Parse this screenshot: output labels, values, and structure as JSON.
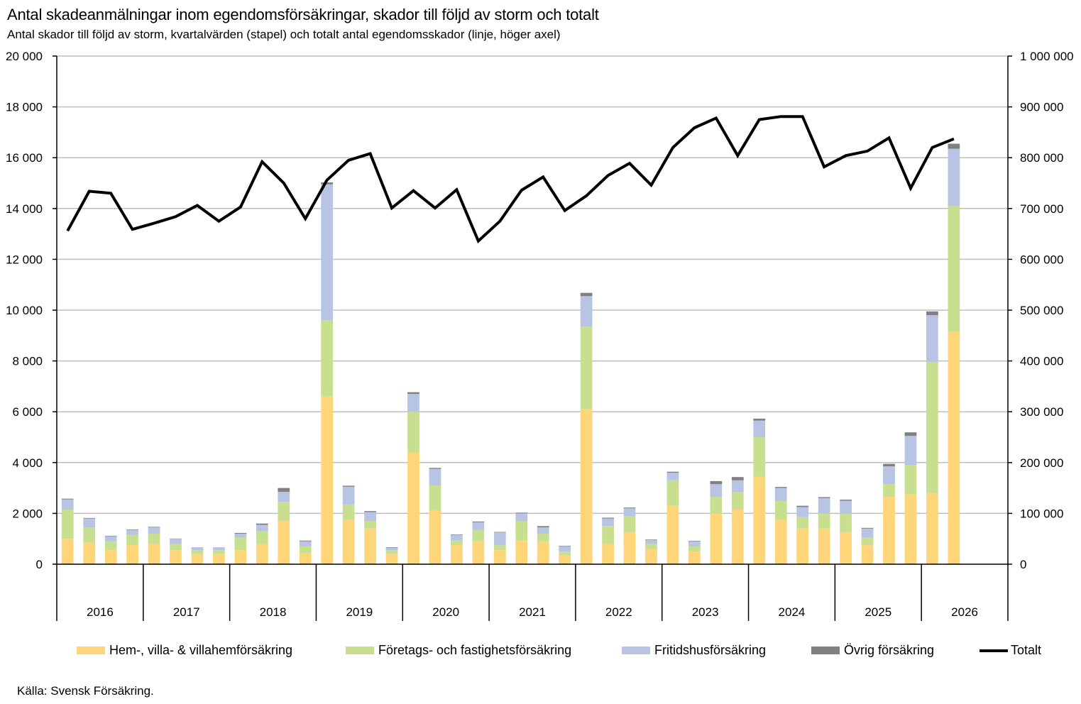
{
  "title": "Antal skadeanmälningar inom egendomsförsäkringar, skador till följd av storm och totalt",
  "subtitle": "Antal skador till följd av storm, kvartalvärden (stapel) och totalt antal egendomsskador (linje, höger axel)",
  "source": "Källa: Svensk Försäkring.",
  "colors": {
    "hem": "#FFD57A",
    "foretag": "#C8DF8F",
    "fritid": "#B7C4E3",
    "ovrig": "#808080",
    "totalt": "#000000",
    "grid": "#BFBFBF"
  },
  "legend": {
    "hem": "Hem-, villa- & villahemförsäkring",
    "foretag": "Företags- och fastighetsförsäkring",
    "fritid": "Fritidshusförsäkring",
    "ovrig": "Övrig försäkring",
    "totalt": "Totalt"
  },
  "chart_data": {
    "type": "bar",
    "stacked": true,
    "years": [
      "2016",
      "2017",
      "2018",
      "2019",
      "2020",
      "2021",
      "2022",
      "2023",
      "2024",
      "2025",
      "2026"
    ],
    "quarters_per_year": 4,
    "left_axis": {
      "min": 0,
      "max": 20000,
      "ticks": [
        "0",
        "2 000",
        "4 000",
        "6 000",
        "8 000",
        "10 000",
        "12 000",
        "14 000",
        "16 000",
        "18 000",
        "20 000"
      ]
    },
    "right_axis": {
      "min": 0,
      "max": 1000000,
      "ticks": [
        "0",
        "100 000",
        "200 000",
        "300 000",
        "400 000",
        "500 000",
        "600 000",
        "700 000",
        "800 000",
        "900 000",
        "1 000 000"
      ]
    },
    "grid": true,
    "legend_position": "bottom",
    "series": [
      {
        "key": "hem",
        "name": "Hem-, villa- & villahemförsäkring",
        "axis": "left",
        "values": [
          1000,
          850,
          550,
          750,
          800,
          550,
          400,
          400,
          550,
          800,
          1700,
          450,
          6600,
          1750,
          1400,
          400,
          4400,
          2100,
          750,
          900,
          550,
          950,
          900,
          350,
          6100,
          800,
          1250,
          600,
          2300,
          500,
          2000,
          2150,
          3450,
          1750,
          1400,
          1400,
          1250,
          750,
          2650,
          2750,
          2800,
          9150
        ]
      },
      {
        "key": "foretag",
        "name": "Företags- och fastighetsförsäkring",
        "axis": "left",
        "values": [
          1150,
          600,
          350,
          400,
          400,
          250,
          150,
          150,
          500,
          500,
          750,
          250,
          3000,
          600,
          300,
          150,
          1600,
          1000,
          200,
          450,
          200,
          750,
          300,
          150,
          3250,
          700,
          650,
          200,
          1000,
          200,
          650,
          700,
          1550,
          750,
          450,
          600,
          750,
          300,
          500,
          1150,
          5150,
          4950
        ]
      },
      {
        "key": "fritid",
        "name": "Fritidshusförsäkring",
        "axis": "left",
        "values": [
          400,
          350,
          200,
          200,
          250,
          200,
          100,
          100,
          150,
          250,
          400,
          200,
          5350,
          700,
          350,
          100,
          700,
          650,
          200,
          300,
          500,
          300,
          250,
          200,
          1200,
          300,
          300,
          150,
          300,
          200,
          500,
          450,
          650,
          500,
          400,
          600,
          500,
          350,
          700,
          1150,
          1850,
          2250
        ]
      },
      {
        "key": "ovrig",
        "name": "Övrig försäkring",
        "axis": "left",
        "values": [
          30,
          20,
          20,
          20,
          20,
          10,
          10,
          10,
          30,
          50,
          150,
          30,
          80,
          40,
          40,
          20,
          70,
          40,
          20,
          30,
          20,
          30,
          50,
          20,
          130,
          30,
          30,
          20,
          40,
          20,
          120,
          130,
          80,
          40,
          50,
          40,
          40,
          30,
          100,
          140,
          150,
          200
        ]
      },
      {
        "key": "totalt",
        "name": "Totalt",
        "axis": "right",
        "values": [
          656000,
          734000,
          730000,
          659000,
          671000,
          684000,
          706000,
          675000,
          703000,
          792000,
          750000,
          680000,
          756000,
          795000,
          808000,
          701000,
          735000,
          701000,
          737000,
          636000,
          675000,
          736000,
          762000,
          696000,
          725000,
          765000,
          789000,
          746000,
          820000,
          859000,
          878000,
          804000,
          875000,
          881000,
          881000,
          782000,
          804000,
          813000,
          839000,
          740000,
          820000,
          837000
        ]
      }
    ]
  }
}
